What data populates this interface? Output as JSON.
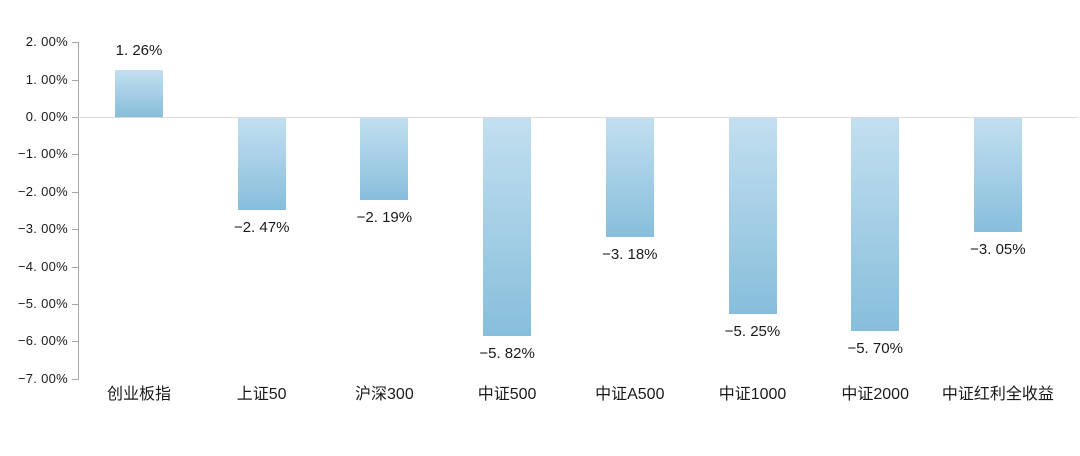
{
  "chart_data": {
    "type": "bar",
    "title": "",
    "xlabel": "",
    "ylabel": "",
    "legend_position": "none",
    "grid": "zero-baseline-only",
    "ylim": [
      -7,
      2
    ],
    "categories": [
      "创业板指",
      "上证50",
      "沪深300",
      "中证500",
      "中证A500",
      "中证1000",
      "中证2000",
      "中证红利全收益"
    ],
    "values": [
      1.26,
      -2.47,
      -2.19,
      -5.82,
      -3.18,
      -5.25,
      -5.7,
      -3.05
    ],
    "value_labels": [
      "1. 26%",
      "−2. 47%",
      "−2. 19%",
      "−5. 82%",
      "−3. 18%",
      "−5. 25%",
      "−5. 70%",
      "−3. 05%"
    ],
    "y_ticks": [
      {
        "value": 2,
        "label": "2. 00%"
      },
      {
        "value": 1,
        "label": "1. 00%"
      },
      {
        "value": 0,
        "label": "0. 00%"
      },
      {
        "value": -1,
        "label": "−1. 00%"
      },
      {
        "value": -2,
        "label": "−2. 00%"
      },
      {
        "value": -3,
        "label": "−3. 00%"
      },
      {
        "value": -4,
        "label": "−4. 00%"
      },
      {
        "value": -5,
        "label": "−5. 00%"
      },
      {
        "value": -6,
        "label": "−6. 00%"
      },
      {
        "value": -7,
        "label": "−7. 00%"
      }
    ],
    "colors": {
      "bar_gradient_top": "#c2dff0",
      "bar_gradient_bottom": "#87bedb",
      "axis_line": "#a6a6a6",
      "zero_line": "#d9d9d9",
      "text": "#1a1a1a",
      "background": "#ffffff"
    }
  }
}
